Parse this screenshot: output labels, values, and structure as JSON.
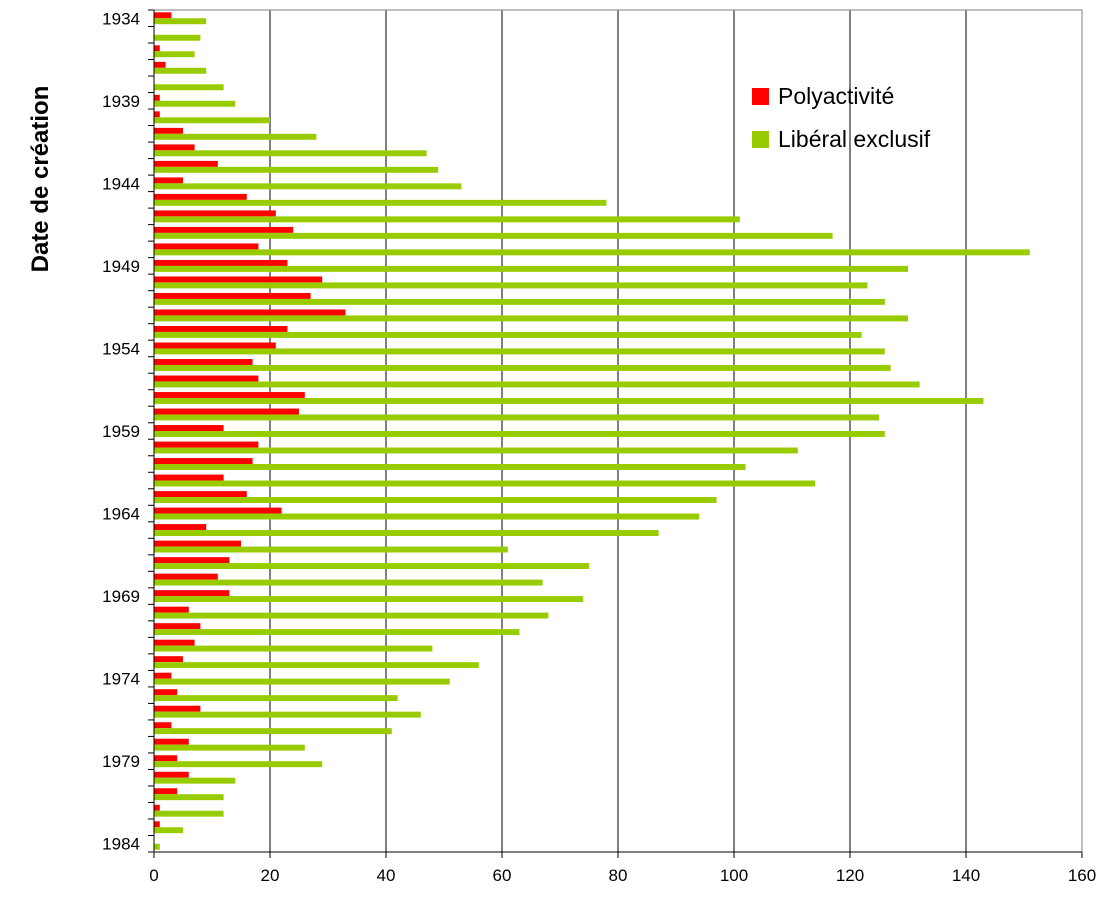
{
  "chart_data": {
    "type": "bar",
    "orientation": "horizontal",
    "ylabel": "Date de création",
    "xlabel": "",
    "title": "",
    "xlim": [
      0,
      160
    ],
    "x_ticks": [
      "0",
      "20",
      "40",
      "60",
      "80",
      "100",
      "120",
      "140",
      "160"
    ],
    "y_tick_labels": [
      "1934",
      "1939",
      "1944",
      "1949",
      "1954",
      "1959",
      "1964",
      "1969",
      "1974",
      "1979",
      "1984"
    ],
    "categories": [
      1934,
      1935,
      1936,
      1937,
      1938,
      1939,
      1940,
      1941,
      1942,
      1943,
      1944,
      1945,
      1946,
      1947,
      1948,
      1949,
      1950,
      1951,
      1952,
      1953,
      1954,
      1955,
      1956,
      1957,
      1958,
      1959,
      1960,
      1961,
      1962,
      1963,
      1964,
      1965,
      1966,
      1967,
      1968,
      1969,
      1970,
      1971,
      1972,
      1973,
      1974,
      1975,
      1976,
      1977,
      1978,
      1979,
      1980,
      1981,
      1982,
      1983,
      1984
    ],
    "grid": {
      "x": true,
      "y": false
    },
    "legend_position": "top-right",
    "series": [
      {
        "name": "Polyactivité",
        "color": "#ff0000",
        "values": [
          3,
          0,
          1,
          2,
          0,
          1,
          1,
          5,
          7,
          11,
          5,
          16,
          21,
          24,
          18,
          23,
          29,
          27,
          33,
          23,
          21,
          17,
          18,
          26,
          25,
          12,
          18,
          17,
          12,
          16,
          22,
          9,
          15,
          13,
          11,
          13,
          6,
          8,
          7,
          5,
          3,
          4,
          8,
          3,
          6,
          4,
          6,
          4,
          1,
          1,
          0
        ]
      },
      {
        "name": "Libéral exclusif",
        "color": "#99cc00",
        "values": [
          9,
          8,
          7,
          9,
          12,
          14,
          20,
          28,
          47,
          49,
          53,
          78,
          101,
          117,
          151,
          130,
          123,
          126,
          130,
          122,
          126,
          127,
          132,
          143,
          125,
          126,
          111,
          102,
          114,
          97,
          94,
          87,
          61,
          75,
          67,
          74,
          68,
          63,
          48,
          56,
          51,
          42,
          46,
          41,
          26,
          29,
          14,
          12,
          12,
          5,
          1
        ]
      }
    ]
  }
}
